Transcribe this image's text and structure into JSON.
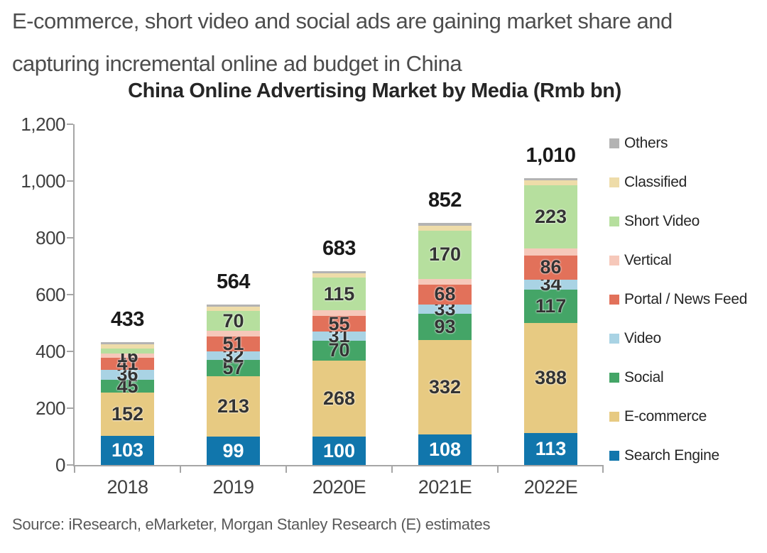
{
  "page": {
    "headline_line1": "E-commerce, short video and social ads are gaining market share and",
    "headline_line2": "capturing incremental online ad budget in China",
    "source": "Source: iResearch, eMarketer, Morgan Stanley Research (E) estimates"
  },
  "chart_data": {
    "type": "bar",
    "stacked": true,
    "title": "China Online Advertising Market by Media (Rmb bn)",
    "categories": [
      "2018",
      "2019",
      "2020E",
      "2021E",
      "2022E"
    ],
    "totals": [
      433,
      564,
      683,
      852,
      1010
    ],
    "totals_display": [
      "433",
      "564",
      "683",
      "852",
      "1,010"
    ],
    "series": [
      {
        "name": "Search Engine",
        "color": "#1176ac",
        "values": [
          103,
          99,
          100,
          108,
          113
        ],
        "labels": [
          "103",
          "99",
          "100",
          "108",
          "113"
        ],
        "label_style": "white"
      },
      {
        "name": "E-commerce",
        "color": "#e7ca82",
        "values": [
          152,
          213,
          268,
          332,
          388
        ],
        "labels": [
          "152",
          "213",
          "268",
          "332",
          "388"
        ],
        "label_style": "dark"
      },
      {
        "name": "Social",
        "color": "#44a567",
        "values": [
          45,
          57,
          70,
          93,
          117
        ],
        "labels": [
          "45",
          "57",
          "70",
          "93",
          "117"
        ],
        "label_style": "dark"
      },
      {
        "name": "Video",
        "color": "#a9d3e4",
        "values": [
          36,
          32,
          31,
          33,
          34
        ],
        "labels": [
          "36",
          "32",
          "31",
          "33",
          "34"
        ],
        "label_style": "dark"
      },
      {
        "name": "Portal / News Feed",
        "color": "#e2715a",
        "values": [
          41,
          51,
          55,
          68,
          86
        ],
        "labels": [
          "41",
          "51",
          "55",
          "68",
          "86"
        ],
        "label_style": "dark"
      },
      {
        "name": "Vertical",
        "color": "#f6c8ba",
        "values": [
          16,
          20,
          20,
          22,
          24
        ],
        "labels": [
          "16",
          "",
          "",
          "",
          ""
        ],
        "label_style": "dark"
      },
      {
        "name": "Short Video",
        "color": "#b6df9e",
        "values": [
          17,
          70,
          115,
          170,
          223
        ],
        "labels": [
          "",
          "70",
          "115",
          "170",
          "223"
        ],
        "label_style": "dark"
      },
      {
        "name": "Classified",
        "color": "#eedca9",
        "values": [
          15,
          15,
          16,
          17,
          18
        ],
        "labels": [
          "",
          "",
          "",
          "",
          ""
        ],
        "label_style": "dark"
      },
      {
        "name": "Others",
        "color": "#b3b3b3",
        "values": [
          8,
          7,
          8,
          9,
          7
        ],
        "labels": [
          "",
          "",
          "",
          "",
          ""
        ],
        "label_style": "dark"
      }
    ],
    "legend_top_to_bottom": [
      "Others",
      "Classified",
      "Short Video",
      "Vertical",
      "Portal / News Feed",
      "Video",
      "Social",
      "E-commerce",
      "Search Engine"
    ],
    "ylim": [
      0,
      1200
    ],
    "ytick_values": [
      0,
      200,
      400,
      600,
      800,
      1000,
      1200
    ],
    "ytick_labels": [
      "0",
      "200",
      "400",
      "600",
      "800",
      "1,000",
      "1,200"
    ],
    "legend_position": "right",
    "grid": false,
    "axis_color": "#a6a6a6"
  }
}
